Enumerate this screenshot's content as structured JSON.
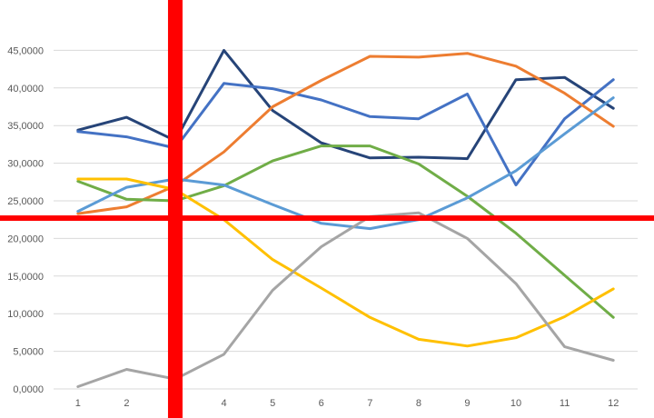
{
  "chart_data": {
    "type": "line",
    "title": "",
    "xlabel": "",
    "ylabel": "",
    "categories": [
      "1",
      "2",
      "3",
      "4",
      "5",
      "6",
      "7",
      "8",
      "9",
      "10",
      "11",
      "12"
    ],
    "y_ticks": [
      "0,0000",
      "5,0000",
      "10,0000",
      "15,0000",
      "20,0000",
      "25,0000",
      "30,0000",
      "35,0000",
      "40,0000",
      "45,0000"
    ],
    "ylim": [
      0,
      50000
    ],
    "grid": true,
    "legend": "none",
    "series": [
      {
        "color": "#264478",
        "values": [
          34400,
          36100,
          33000,
          45000,
          37000,
          32700,
          30700,
          30800,
          30600,
          41100,
          41400,
          37300
        ]
      },
      {
        "color": "#4472c4",
        "values": [
          34200,
          33500,
          32000,
          40600,
          39900,
          38400,
          36200,
          35900,
          39200,
          27100,
          35900,
          41100
        ]
      },
      {
        "color": "#ed7d31",
        "values": [
          23300,
          24200,
          27000,
          31500,
          37500,
          41000,
          44200,
          44100,
          44600,
          42900,
          39300,
          34900
        ]
      },
      {
        "color": "#70ad47",
        "values": [
          27600,
          25200,
          25000,
          27000,
          30300,
          32300,
          32300,
          29900,
          25600,
          20700,
          15100,
          9500
        ]
      },
      {
        "color": "#5b9bd5",
        "values": [
          23600,
          26800,
          27900,
          27100,
          24500,
          22000,
          21300,
          22500,
          25400,
          29000,
          33900,
          38700
        ]
      },
      {
        "color": "#ffc000",
        "values": [
          27900,
          27900,
          26500,
          22500,
          17200,
          13400,
          9500,
          6600,
          5700,
          6800,
          9600,
          13300
        ]
      },
      {
        "color": "#a5a5a5",
        "values": [
          300,
          2600,
          1300,
          4600,
          13100,
          18900,
          22900,
          23400,
          20000,
          14000,
          5600,
          3800
        ]
      }
    ],
    "overlays": {
      "color": "#ff0000",
      "vertical_line_at_category": 3,
      "horizontal_line_at_value": 22700
    }
  }
}
